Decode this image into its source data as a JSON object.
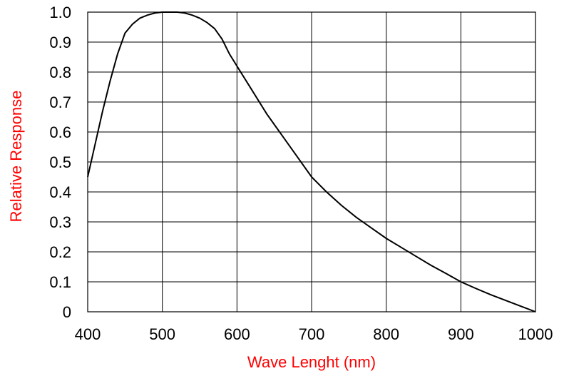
{
  "chart_data": {
    "type": "line",
    "title": "",
    "xlabel": "Wave Lenght (nm)",
    "ylabel": "Relative Response",
    "xlim": [
      400,
      1000
    ],
    "ylim": [
      0,
      1.0
    ],
    "x_ticks": [
      400,
      500,
      600,
      700,
      800,
      900,
      1000
    ],
    "y_ticks": [
      0,
      0.1,
      0.2,
      0.3,
      0.4,
      0.5,
      0.6,
      0.7,
      0.8,
      0.9,
      1.0
    ],
    "x_tick_labels": [
      "400",
      "500",
      "600",
      "700",
      "800",
      "900",
      "1000"
    ],
    "y_tick_labels": [
      "0",
      "0.1",
      "0.2",
      "0.3",
      "0.4",
      "0.5",
      "0.6",
      "0.7",
      "0.8",
      "0.9",
      "1.0"
    ],
    "grid": true,
    "colors": {
      "axis_title": "#ff0000",
      "line": "#000000",
      "grid": "#000000"
    },
    "series": [
      {
        "x": [
          400,
          410,
          420,
          430,
          440,
          450,
          455,
          460,
          470,
          480,
          490,
          500,
          510,
          520,
          530,
          540,
          550,
          560,
          570,
          580,
          590,
          600,
          620,
          640,
          660,
          680,
          700,
          720,
          740,
          760,
          780,
          800,
          820,
          840,
          860,
          880,
          900,
          920,
          940,
          960,
          980,
          1000
        ],
        "y": [
          0.45,
          0.56,
          0.67,
          0.77,
          0.86,
          0.93,
          0.945,
          0.96,
          0.98,
          0.99,
          0.997,
          1.0,
          1.0,
          1.0,
          0.997,
          0.99,
          0.98,
          0.965,
          0.945,
          0.91,
          0.86,
          0.82,
          0.74,
          0.66,
          0.59,
          0.52,
          0.45,
          0.4,
          0.355,
          0.315,
          0.28,
          0.245,
          0.215,
          0.185,
          0.155,
          0.128,
          0.1,
          0.078,
          0.057,
          0.038,
          0.019,
          0.0
        ]
      }
    ]
  }
}
